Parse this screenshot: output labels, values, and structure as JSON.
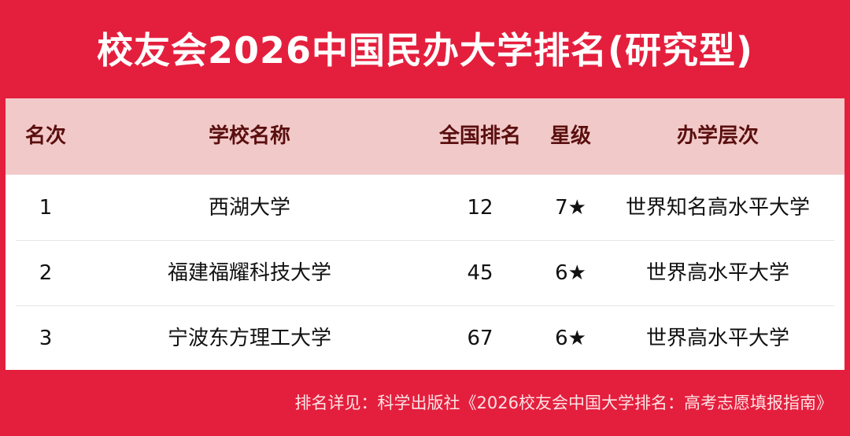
{
  "title": "校友会2026中国民办大学排名(研究型)",
  "headers": [
    "名次",
    "学校名称",
    "全国排名",
    "星级",
    "办学层次"
  ],
  "rows": [
    {
      "rank": "1",
      "name": "西湖大学",
      "national_rank": "12",
      "stars": "7★",
      "level": "世界知名高水平大学"
    },
    {
      "rank": "2",
      "name": "福建福耀科技大学",
      "national_rank": "45",
      "stars": "6★",
      "level": "世界高水平大学"
    },
    {
      "rank": "3",
      "name": "宁波东方理工大学",
      "national_rank": "67",
      "stars": "6★",
      "level": "世界高水平大学"
    }
  ],
  "footer": "排名详见：科学出版社《2026校友会中国大学排名：高考志愿填报指南》",
  "colors": {
    "background": "#e41f3d",
    "header_bg": "#f2c9c9",
    "header_text": "#5a0f0f"
  }
}
